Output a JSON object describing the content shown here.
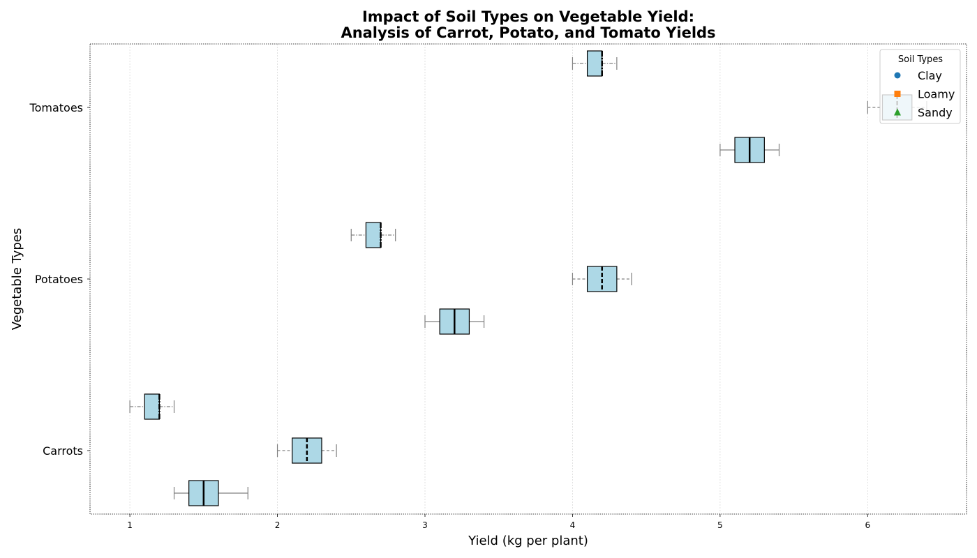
{
  "chart_data": {
    "type": "boxplot",
    "orientation": "horizontal",
    "title_line1": "Impact of Soil Types on Vegetable Yield:",
    "title_line2": "Analysis of Carrot, Potato, and Tomato Yields",
    "xlabel": "Yield (kg per plant)",
    "ylabel": "Vegetable Types",
    "xlim": [
      0.73,
      6.67
    ],
    "x_ticks": [
      1,
      2,
      3,
      4,
      5,
      6
    ],
    "grid": "x dotted",
    "categories": [
      "Carrots",
      "Potatoes",
      "Tomatoes"
    ],
    "legend": {
      "title": "Soil Types",
      "placement": "top-right",
      "entries": [
        {
          "name": "Clay",
          "marker": "circle",
          "color": "#1f77b4"
        },
        {
          "name": "Loamy",
          "marker": "square",
          "color": "#ff7f0e"
        },
        {
          "name": "Sandy",
          "marker": "triangle",
          "color": "#2ca02c"
        }
      ]
    },
    "box_color": "#add8e6",
    "whisker_color": "#808080",
    "boxes": [
      {
        "category": "Carrots",
        "soil": "Clay",
        "whislo": 1.3,
        "q1": 1.4,
        "med": 1.5,
        "q3": 1.6,
        "whishi": 1.8,
        "whisker_style": "solid"
      },
      {
        "category": "Carrots",
        "soil": "Loamy",
        "whislo": 2.0,
        "q1": 2.1,
        "med": 2.2,
        "q3": 2.3,
        "whishi": 2.4,
        "whisker_style": "dashed"
      },
      {
        "category": "Carrots",
        "soil": "Sandy",
        "whislo": 1.0,
        "q1": 1.1,
        "med": 1.2,
        "q3": 1.2,
        "whishi": 1.3,
        "whisker_style": "dashdot"
      },
      {
        "category": "Potatoes",
        "soil": "Clay",
        "whislo": 3.0,
        "q1": 3.1,
        "med": 3.2,
        "q3": 3.3,
        "whishi": 3.4,
        "whisker_style": "solid"
      },
      {
        "category": "Potatoes",
        "soil": "Loamy",
        "whislo": 4.0,
        "q1": 4.1,
        "med": 4.2,
        "q3": 4.3,
        "whishi": 4.4,
        "whisker_style": "dashed"
      },
      {
        "category": "Potatoes",
        "soil": "Sandy",
        "whislo": 2.5,
        "q1": 2.6,
        "med": 2.7,
        "q3": 2.7,
        "whishi": 2.8,
        "whisker_style": "dashdot"
      },
      {
        "category": "Tomatoes",
        "soil": "Clay",
        "whislo": 5.0,
        "q1": 5.1,
        "med": 5.2,
        "q3": 5.3,
        "whishi": 5.4,
        "whisker_style": "solid"
      },
      {
        "category": "Tomatoes",
        "soil": "Loamy",
        "whislo": 6.0,
        "q1": 6.1,
        "med": 6.2,
        "q3": 6.3,
        "whishi": 6.4,
        "whisker_style": "dashed"
      },
      {
        "category": "Tomatoes",
        "soil": "Sandy",
        "whislo": 4.0,
        "q1": 4.1,
        "med": 4.2,
        "q3": 4.2,
        "whishi": 4.3,
        "whisker_style": "dashdot"
      }
    ]
  }
}
